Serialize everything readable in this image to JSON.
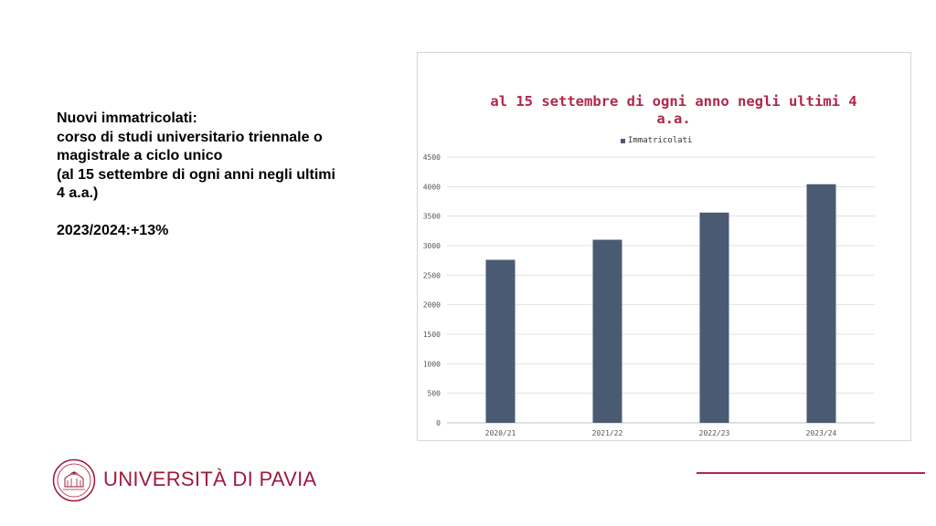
{
  "text_block": {
    "lines": [
      "Nuovi immatricolati:",
      "corso di studi universitario triennale o",
      "magistrale a ciclo unico",
      "(al 15 settembre di ogni anni negli ultimi",
      "4 a.a.)"
    ],
    "growth": "2023/2024:+13%"
  },
  "footer": {
    "university_name": "UNIVERSITÀ DI PAVIA",
    "accent_color": "#9e1b3c"
  },
  "chart_data": {
    "type": "bar",
    "title_lines": [
      "al 15 settembre di ogni anno negli ultimi 4",
      "a.a."
    ],
    "categories": [
      "2020/21",
      "2021/22",
      "2022/23",
      "2023/24"
    ],
    "series": [
      {
        "name": "Immatricolati",
        "values": [
          2760,
          3100,
          3560,
          4040
        ],
        "color": "#4a5a73"
      }
    ],
    "yticks": [
      "0",
      "500",
      "1000",
      "1500",
      "2000",
      "2500",
      "3000",
      "3500",
      "4000",
      "4500"
    ],
    "ylim": [
      0,
      4500
    ],
    "grid": true,
    "legend_position": "top-center",
    "title_color": "#b0274a"
  }
}
